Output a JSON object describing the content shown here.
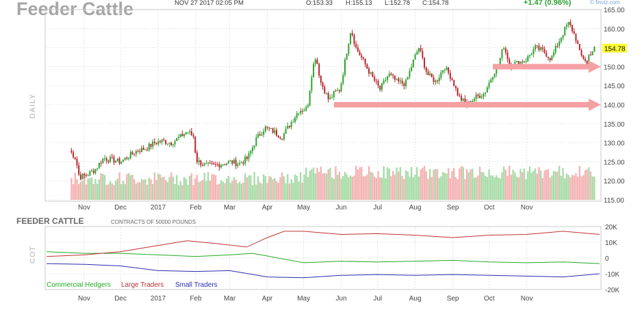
{
  "header": {
    "title": "Feeder Cattle",
    "datetime": "NOV 27 2017 02:05 PM",
    "open": "O:153.33",
    "high": "H:155.13",
    "low": "L:152.78",
    "close": "C:154.78",
    "change": "+1.47 (0.96%)",
    "brand": "© finviz.com"
  },
  "colors": {
    "up": "#2ca02c",
    "down": "#b8232a",
    "vol_up": "#a9dca9",
    "vol_down": "#f4b4b4",
    "arrow": "#f5a0a3",
    "last_price_bg": "#ffff33",
    "hedgers": "#22aa22",
    "large": "#c03030",
    "small": "#2a2ab0"
  },
  "chart_data": [
    {
      "type": "candlestick",
      "name": "price",
      "panel_label": "DAILY",
      "ylim": [
        115,
        165
      ],
      "y_ticks": [
        "165.00",
        "160.00",
        "155.00",
        "150.00",
        "145.00",
        "140.00",
        "135.00",
        "130.00",
        "125.00",
        "120.00",
        "115.00"
      ],
      "x_tick_labels": [
        "Nov",
        "Dec",
        "2017",
        "Feb",
        "Mar",
        "Apr",
        "May",
        "Jun",
        "Jul",
        "Aug",
        "Sep",
        "Oct",
        "Nov"
      ],
      "last_price": "154.78",
      "close_path": [
        {
          "date": "2016-10-20",
          "close": 128
        },
        {
          "date": "2016-10-25",
          "close": 126
        },
        {
          "date": "2016-10-28",
          "close": 121
        },
        {
          "date": "2016-11-03",
          "close": 121.5
        },
        {
          "date": "2016-11-10",
          "close": 123
        },
        {
          "date": "2016-11-17",
          "close": 126
        },
        {
          "date": "2016-11-24",
          "close": 125.5
        },
        {
          "date": "2016-12-01",
          "close": 125
        },
        {
          "date": "2016-12-08",
          "close": 126.5
        },
        {
          "date": "2016-12-15",
          "close": 128
        },
        {
          "date": "2016-12-22",
          "close": 128.5
        },
        {
          "date": "2016-12-29",
          "close": 130
        },
        {
          "date": "2017-01-05",
          "close": 130.5
        },
        {
          "date": "2017-01-12",
          "close": 130
        },
        {
          "date": "2017-01-19",
          "close": 131.5
        },
        {
          "date": "2017-01-25",
          "close": 133
        },
        {
          "date": "2017-01-31",
          "close": 131.5
        },
        {
          "date": "2017-02-01",
          "close": 125.5
        },
        {
          "date": "2017-02-09",
          "close": 124
        },
        {
          "date": "2017-02-16",
          "close": 124
        },
        {
          "date": "2017-02-23",
          "close": 124.5
        },
        {
          "date": "2017-03-02",
          "close": 125
        },
        {
          "date": "2017-03-09",
          "close": 124.5
        },
        {
          "date": "2017-03-16",
          "close": 126
        },
        {
          "date": "2017-03-23",
          "close": 131
        },
        {
          "date": "2017-03-30",
          "close": 134
        },
        {
          "date": "2017-04-06",
          "close": 133
        },
        {
          "date": "2017-04-13",
          "close": 131.5
        },
        {
          "date": "2017-04-20",
          "close": 135
        },
        {
          "date": "2017-04-27",
          "close": 138.5
        },
        {
          "date": "2017-05-04",
          "close": 139
        },
        {
          "date": "2017-05-08",
          "close": 149
        },
        {
          "date": "2017-05-11",
          "close": 153
        },
        {
          "date": "2017-05-15",
          "close": 146
        },
        {
          "date": "2017-05-18",
          "close": 144
        },
        {
          "date": "2017-05-22",
          "close": 141
        },
        {
          "date": "2017-05-26",
          "close": 143
        },
        {
          "date": "2017-05-31",
          "close": 144
        },
        {
          "date": "2017-06-05",
          "close": 153
        },
        {
          "date": "2017-06-09",
          "close": 160
        },
        {
          "date": "2017-06-13",
          "close": 155
        },
        {
          "date": "2017-06-20",
          "close": 151
        },
        {
          "date": "2017-06-27",
          "close": 147
        },
        {
          "date": "2017-07-03",
          "close": 144
        },
        {
          "date": "2017-07-10",
          "close": 148
        },
        {
          "date": "2017-07-17",
          "close": 146
        },
        {
          "date": "2017-07-24",
          "close": 145.5
        },
        {
          "date": "2017-07-31",
          "close": 152
        },
        {
          "date": "2017-08-04",
          "close": 155
        },
        {
          "date": "2017-08-11",
          "close": 148
        },
        {
          "date": "2017-08-18",
          "close": 146
        },
        {
          "date": "2017-08-25",
          "close": 150
        },
        {
          "date": "2017-08-31",
          "close": 147
        },
        {
          "date": "2017-09-06",
          "close": 142
        },
        {
          "date": "2017-09-13",
          "close": 140
        },
        {
          "date": "2017-09-20",
          "close": 142
        },
        {
          "date": "2017-09-27",
          "close": 143
        },
        {
          "date": "2017-10-04",
          "close": 148
        },
        {
          "date": "2017-10-09",
          "close": 151
        },
        {
          "date": "2017-10-13",
          "close": 155.5
        },
        {
          "date": "2017-10-18",
          "close": 150.5
        },
        {
          "date": "2017-10-25",
          "close": 151
        },
        {
          "date": "2017-11-01",
          "close": 152
        },
        {
          "date": "2017-11-08",
          "close": 155
        },
        {
          "date": "2017-11-15",
          "close": 154
        },
        {
          "date": "2017-11-21",
          "close": 152
        },
        {
          "date": "2017-11-28",
          "close": 157
        },
        {
          "date": "2017-12-05",
          "close": 161.5
        },
        {
          "date": "2017-12-08",
          "close": 160
        },
        {
          "date": "2017-12-12",
          "close": 157
        },
        {
          "date": "2017-12-15",
          "close": 153
        },
        {
          "date": "2017-12-19",
          "close": 152
        },
        {
          "date": "2017-12-21",
          "close": 150
        },
        {
          "date": "2017-12-22",
          "close": 153
        },
        {
          "date": "2017-12-27",
          "close": 154.78
        }
      ],
      "annotations": [
        {
          "type": "arrow",
          "from_date": "2017-05-26",
          "to_date": "2017-12-31",
          "y": 140
        },
        {
          "type": "arrow",
          "from_date": "2017-10-04",
          "to_date": "2017-12-31",
          "y": 150
        }
      ]
    },
    {
      "type": "line",
      "name": "cot",
      "title": "FEEDER CATTLE",
      "subtitle": "CONTRACTS OF 50000 POUNDS",
      "panel_label": "COT",
      "ylim": [
        -20000,
        20000
      ],
      "y_ticks": [
        "20K",
        "10K",
        "0",
        "-10K",
        "-20K"
      ],
      "x_tick_labels": [
        "Nov",
        "Dec",
        "2017",
        "Feb",
        "Mar",
        "Apr",
        "May",
        "Jun",
        "Jul",
        "Aug",
        "Sep",
        "Oct",
        "Nov"
      ],
      "series": [
        {
          "name": "Commercial Hedgers",
          "points": [
            {
              "date": "2016-10-01",
              "value": 4000
            },
            {
              "date": "2016-11-01",
              "value": 3000
            },
            {
              "date": "2016-12-01",
              "value": 3000
            },
            {
              "date": "2017-01-01",
              "value": 2000
            },
            {
              "date": "2017-02-01",
              "value": 1000
            },
            {
              "date": "2017-03-01",
              "value": 2000
            },
            {
              "date": "2017-03-20",
              "value": 3000
            },
            {
              "date": "2017-04-10",
              "value": 0
            },
            {
              "date": "2017-05-01",
              "value": -3000
            },
            {
              "date": "2017-06-01",
              "value": -2000
            },
            {
              "date": "2017-07-01",
              "value": -2500
            },
            {
              "date": "2017-08-01",
              "value": -2000
            },
            {
              "date": "2017-09-01",
              "value": -1500
            },
            {
              "date": "2017-10-01",
              "value": -2500
            },
            {
              "date": "2017-11-01",
              "value": -3000
            },
            {
              "date": "2017-12-01",
              "value": -2500
            },
            {
              "date": "2017-12-31",
              "value": -3500
            }
          ]
        },
        {
          "name": "Large Traders",
          "points": [
            {
              "date": "2016-10-01",
              "value": 1000
            },
            {
              "date": "2016-11-01",
              "value": 2000
            },
            {
              "date": "2016-12-01",
              "value": 4000
            },
            {
              "date": "2017-01-01",
              "value": 8000
            },
            {
              "date": "2017-01-25",
              "value": 11000
            },
            {
              "date": "2017-02-20",
              "value": 9000
            },
            {
              "date": "2017-03-15",
              "value": 7000
            },
            {
              "date": "2017-04-01",
              "value": 13000
            },
            {
              "date": "2017-04-15",
              "value": 17000
            },
            {
              "date": "2017-05-01",
              "value": 17000
            },
            {
              "date": "2017-06-01",
              "value": 15000
            },
            {
              "date": "2017-07-01",
              "value": 15500
            },
            {
              "date": "2017-08-01",
              "value": 14500
            },
            {
              "date": "2017-09-01",
              "value": 13000
            },
            {
              "date": "2017-10-01",
              "value": 14500
            },
            {
              "date": "2017-11-01",
              "value": 15000
            },
            {
              "date": "2017-12-01",
              "value": 17000
            },
            {
              "date": "2017-12-31",
              "value": 15000
            }
          ]
        },
        {
          "name": "Small Traders",
          "points": [
            {
              "date": "2016-10-01",
              "value": -3500
            },
            {
              "date": "2016-11-01",
              "value": -4000
            },
            {
              "date": "2016-12-01",
              "value": -5000
            },
            {
              "date": "2017-01-01",
              "value": -8000
            },
            {
              "date": "2017-02-01",
              "value": -8500
            },
            {
              "date": "2017-03-01",
              "value": -8000
            },
            {
              "date": "2017-04-01",
              "value": -12000
            },
            {
              "date": "2017-05-01",
              "value": -12500
            },
            {
              "date": "2017-06-01",
              "value": -11000
            },
            {
              "date": "2017-07-01",
              "value": -10500
            },
            {
              "date": "2017-08-01",
              "value": -11000
            },
            {
              "date": "2017-09-01",
              "value": -10500
            },
            {
              "date": "2017-10-01",
              "value": -11000
            },
            {
              "date": "2017-11-01",
              "value": -11500
            },
            {
              "date": "2017-12-01",
              "value": -12000
            },
            {
              "date": "2017-12-31",
              "value": -10000
            }
          ]
        }
      ]
    }
  ]
}
